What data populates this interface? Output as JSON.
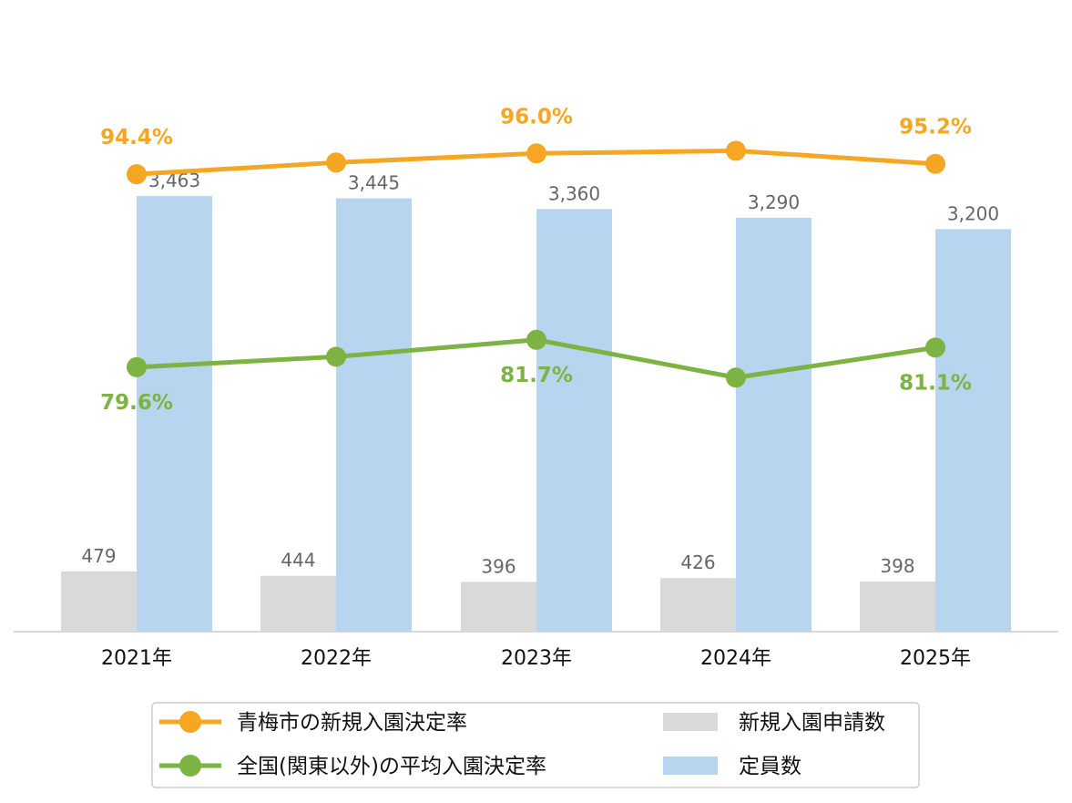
{
  "chart_data": {
    "type": "bar",
    "categories": [
      "2021年",
      "2022年",
      "2023年",
      "2024年",
      "2025年"
    ],
    "bar_series": [
      {
        "name": "新規入園申請数",
        "values": [
          479,
          444,
          396,
          426,
          398
        ],
        "color": "#d9d9d9"
      },
      {
        "name": "定員数",
        "values": [
          3463,
          3445,
          3360,
          3290,
          3200
        ],
        "color": "#b7d5ef"
      }
    ],
    "bar_value_labels": [
      [
        "479",
        "444",
        "396",
        "426",
        "398"
      ],
      [
        "3,463",
        "3,445",
        "3,360",
        "3,290",
        "3,200"
      ]
    ],
    "line_series": [
      {
        "name": "青梅市の新規入園決定率",
        "values": [
          94.4,
          95.3,
          96.0,
          96.2,
          95.2
        ],
        "labels": [
          "94.4%",
          "",
          "96.0%",
          "",
          "95.2%"
        ],
        "color": "#f5a623"
      },
      {
        "name": "全国(関東以外)の平均入園決定率",
        "values": [
          79.6,
          80.4,
          81.7,
          78.8,
          81.1
        ],
        "labels": [
          "79.6%",
          "",
          "81.7%",
          "",
          "81.1%"
        ],
        "color": "#7cb342"
      }
    ],
    "legend": {
      "placement": "bottom",
      "items": [
        {
          "name": "青梅市の新規入園決定率",
          "kind": "line",
          "color": "#f5a623"
        },
        {
          "name": "新規入園申請数",
          "kind": "bar",
          "color": "#d9d9d9"
        },
        {
          "name": "全国(関東以外)の平均入園決定率",
          "kind": "line",
          "color": "#7cb342"
        },
        {
          "name": "定員数",
          "kind": "bar",
          "color": "#b7d5ef"
        }
      ]
    },
    "title": "",
    "grid": false
  }
}
